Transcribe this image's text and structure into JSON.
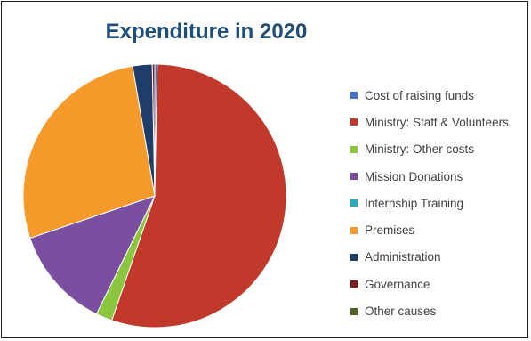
{
  "chart_data": {
    "type": "pie",
    "title": "Expenditure in 2020",
    "slices": [
      {
        "label": "Cost of raising funds",
        "value": 0.3,
        "color": "#4472c4"
      },
      {
        "label": "Ministry: Staff & Volunteers",
        "value": 55.0,
        "color": "#c0392b"
      },
      {
        "label": "Ministry: Other costs",
        "value": 2.0,
        "color": "#8cc63f"
      },
      {
        "label": "Mission Donations",
        "value": 12.5,
        "color": "#7a4fa0"
      },
      {
        "label": "Internship Training",
        "value": 0.0,
        "color": "#2aaac0"
      },
      {
        "label": "Premises",
        "value": 27.5,
        "color": "#f59a2b"
      },
      {
        "label": "Administration",
        "value": 2.4,
        "color": "#1f3d6b"
      },
      {
        "label": "Governance",
        "value": 0.3,
        "color": "#7b1e1e"
      },
      {
        "label": "Other causes",
        "value": 0.0,
        "color": "#4f6228"
      }
    ],
    "legend_position": "right"
  }
}
